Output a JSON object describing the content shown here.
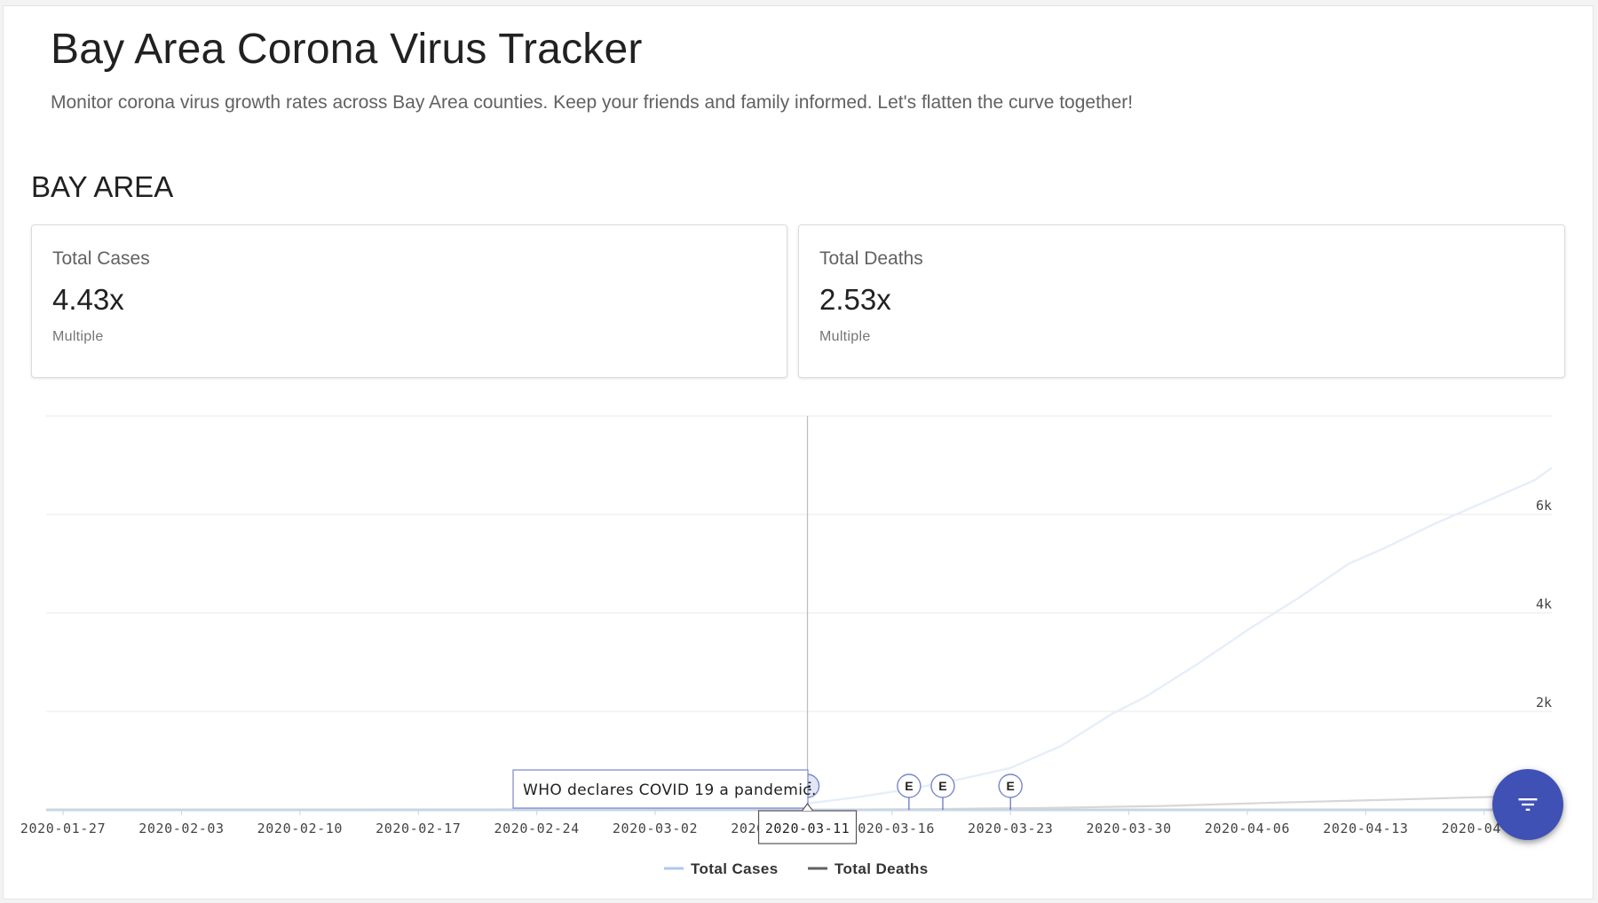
{
  "header": {
    "title": "Bay Area Corona Virus Tracker",
    "subtitle": "Monitor corona virus growth rates across Bay Area counties. Keep your friends and family informed. Let's flatten the curve together!"
  },
  "section_title": "BAY AREA",
  "cards": [
    {
      "label": "Total Cases",
      "value": "4.43x",
      "unit": "Multiple"
    },
    {
      "label": "Total Deaths",
      "value": "2.53x",
      "unit": "Multiple"
    }
  ],
  "fab": {
    "icon": "filter-list-icon",
    "color": "#3f51b5"
  },
  "chart_data": {
    "type": "line",
    "x_tick_labels": [
      "2020-01-27",
      "2020-02-03",
      "2020-02-10",
      "2020-02-17",
      "2020-02-24",
      "2020-03-02",
      "2020-03-09",
      "2020-03-16",
      "2020-03-23",
      "2020-03-30",
      "2020-04-06",
      "2020-04-13",
      "2020-04-20"
    ],
    "y_ticks": [
      {
        "value": 2000,
        "label": "2k"
      },
      {
        "value": 4000,
        "label": "4k"
      },
      {
        "value": 6000,
        "label": "6k"
      }
    ],
    "ylim": [
      0,
      8000
    ],
    "xlim": [
      "2020-01-26",
      "2020-04-24"
    ],
    "grid": true,
    "legend_position": "bottom",
    "series": [
      {
        "name": "Total Cases",
        "color": "#aec8ee",
        "line_color": "#e6eef9",
        "points": [
          [
            "2020-01-26",
            0
          ],
          [
            "2020-02-05",
            3
          ],
          [
            "2020-02-20",
            8
          ],
          [
            "2020-02-28",
            15
          ],
          [
            "2020-03-05",
            45
          ],
          [
            "2020-03-09",
            95
          ],
          [
            "2020-03-11",
            130
          ],
          [
            "2020-03-14",
            260
          ],
          [
            "2020-03-17",
            420
          ],
          [
            "2020-03-20",
            620
          ],
          [
            "2020-03-23",
            850
          ],
          [
            "2020-03-26",
            1300
          ],
          [
            "2020-03-29",
            1950
          ],
          [
            "2020-03-31",
            2300
          ],
          [
            "2020-04-03",
            2950
          ],
          [
            "2020-04-06",
            3650
          ],
          [
            "2020-04-09",
            4300
          ],
          [
            "2020-04-12",
            5000
          ],
          [
            "2020-04-14",
            5300
          ],
          [
            "2020-04-17",
            5800
          ],
          [
            "2020-04-20",
            6250
          ],
          [
            "2020-04-23",
            6700
          ],
          [
            "2020-04-24",
            6950
          ]
        ]
      },
      {
        "name": "Total Deaths",
        "color": "#616161",
        "line_color": "#d7d7d7",
        "points": [
          [
            "2020-01-26",
            0
          ],
          [
            "2020-03-04",
            0
          ],
          [
            "2020-03-11",
            3
          ],
          [
            "2020-03-18",
            15
          ],
          [
            "2020-03-25",
            40
          ],
          [
            "2020-04-01",
            80
          ],
          [
            "2020-04-08",
            150
          ],
          [
            "2020-04-15",
            210
          ],
          [
            "2020-04-20",
            260
          ],
          [
            "2020-04-24",
            280
          ]
        ]
      }
    ],
    "events": [
      {
        "date": "2020-03-11",
        "marker": "E",
        "text": "WHO declares COVID 19 a pandemic.",
        "active": true
      },
      {
        "date": "2020-03-17",
        "marker": "E"
      },
      {
        "date": "2020-03-19",
        "marker": "E"
      },
      {
        "date": "2020-03-23",
        "marker": "E"
      }
    ],
    "crosshair": {
      "date": "2020-03-11",
      "label": "2020-03-11"
    }
  }
}
